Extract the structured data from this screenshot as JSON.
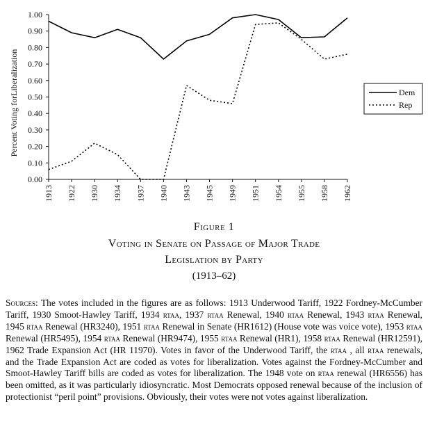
{
  "chart_data": {
    "type": "line",
    "categories": [
      "1913",
      "1922",
      "1930",
      "1934",
      "1937",
      "1940",
      "1943",
      "1945",
      "1949",
      "1951",
      "1954",
      "1955",
      "1958",
      "1962"
    ],
    "ylabel": "Percent Voting forLiberalization",
    "ylim": [
      0,
      1
    ],
    "yticks": [
      "0.00",
      "0.10",
      "0.20",
      "0.30",
      "0.40",
      "0.50",
      "0.60",
      "0.70",
      "0.80",
      "0.90",
      "1.00"
    ],
    "legend_position": "right",
    "series": [
      {
        "name": "Dem",
        "style": "solid",
        "color": "#000000",
        "values": [
          0.96,
          0.89,
          0.86,
          0.91,
          0.86,
          0.73,
          0.84,
          0.88,
          0.98,
          1.0,
          0.97,
          0.86,
          0.865,
          0.98
        ]
      },
      {
        "name": "Rep",
        "style": "dotted",
        "color": "#000000",
        "values": [
          0.06,
          0.11,
          0.22,
          0.15,
          0.0,
          0.0,
          0.57,
          0.48,
          0.46,
          0.94,
          0.95,
          0.85,
          0.73,
          0.76
        ]
      }
    ]
  },
  "figure": {
    "label": "Figure 1",
    "title_line1": "Voting in Senate on Passage of Major Trade",
    "title_line2": "Legislation by Party",
    "years": "(1913–62)"
  },
  "sources": {
    "lead": "Sources",
    "p1": ": The votes included in the figures are as follows: 1913 Underwood Tariff, 1922 Fordney-McCumber Tariff, 1930 Smoot-Hawley Tariff, 1934 ",
    "rtaa": "rtaa",
    "p2": ", 1937 ",
    "p3": " Renewal, 1940 ",
    "p4": " Renewal, 1943 ",
    "p5": " Renewal, 1945 ",
    "p6": " Renewal (HR3240), 1951 ",
    "p7": " Renewal in Senate (HR1612) (House vote was voice vote), 1953 ",
    "p8": " Renewal (HR5495), 1954 ",
    "p9": " Renewal (HR9474), 1955 ",
    "p10": " Renewal (HR1), 1958 ",
    "p11": " Renewal (HR12591), 1962 Trade Expansion Act (HR 11970). Votes in favor of the Underwood Tariff, the ",
    "p12": " , all ",
    "p13": " renewals, and the Trade Expansion Act are coded as votes for liberalization. Votes against the Fordney-McCumber and Smoot-Hawley Tariff bills are coded as votes for liberalization. The 1948 vote on ",
    "p14": " renewal (HR6556) has been omitted, as it was particularly idiosyncratic. Most Democrats opposed renewal because of the inclusion of protectionist “peril point” provisions. Obviously, their votes were not votes against liberalization."
  }
}
